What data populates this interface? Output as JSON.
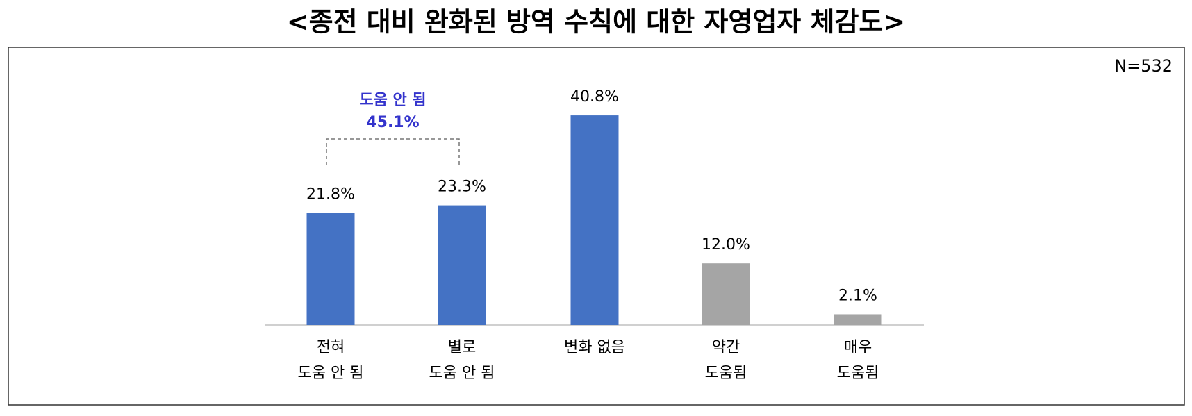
{
  "chart_data": {
    "type": "bar",
    "title": "<종전 대비 완화된 방역 수칙에 대한 자영업자 체감도>",
    "note": "N=532",
    "categories": [
      [
        "전혀",
        "도움 안 됨"
      ],
      [
        "별로",
        "도움 안 됨"
      ],
      [
        "변화 없음"
      ],
      [
        "약간",
        "도움됨"
      ],
      [
        "매우",
        "도움됨"
      ]
    ],
    "values": [
      21.8,
      23.3,
      40.8,
      12.0,
      2.1
    ],
    "value_labels": [
      "21.8%",
      "23.3%",
      "40.8%",
      "12.0%",
      "2.1%"
    ],
    "colors": [
      "#4472c4",
      "#4472c4",
      "#4472c4",
      "#a5a5a5",
      "#a5a5a5"
    ],
    "annotation": {
      "text": [
        "도움 안 됨",
        "45.1%"
      ],
      "color": "#3333cc"
    }
  }
}
